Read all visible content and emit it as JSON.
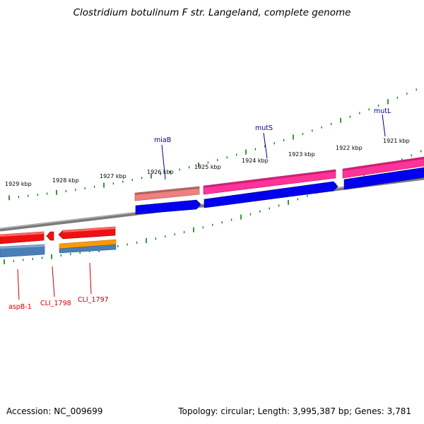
{
  "title": "Clostridium botulinum F str. Langeland, complete genome",
  "footer": {
    "accession": "Accession: NC_009699",
    "summary": "Topology: circular; Length: 3,995,387 bp; Genes: 3,781"
  },
  "kbp_labels": [
    "1929 kbp",
    "1928 kbp",
    "1927 kbp",
    "1926 kbp",
    "1925 kbp",
    "1924 kbp",
    "1923 kbp",
    "1922 kbp",
    "1921 kbp"
  ],
  "genes_top": [
    "miaB",
    "mutS",
    "mutL"
  ],
  "genes_bottom": [
    "aspB-1",
    "CLI_1798",
    "CLI_1797"
  ],
  "colors": {
    "top_label": "#00008b",
    "bottom_label": "#cc0000",
    "tick": "#008000",
    "backbone": "#777777"
  }
}
